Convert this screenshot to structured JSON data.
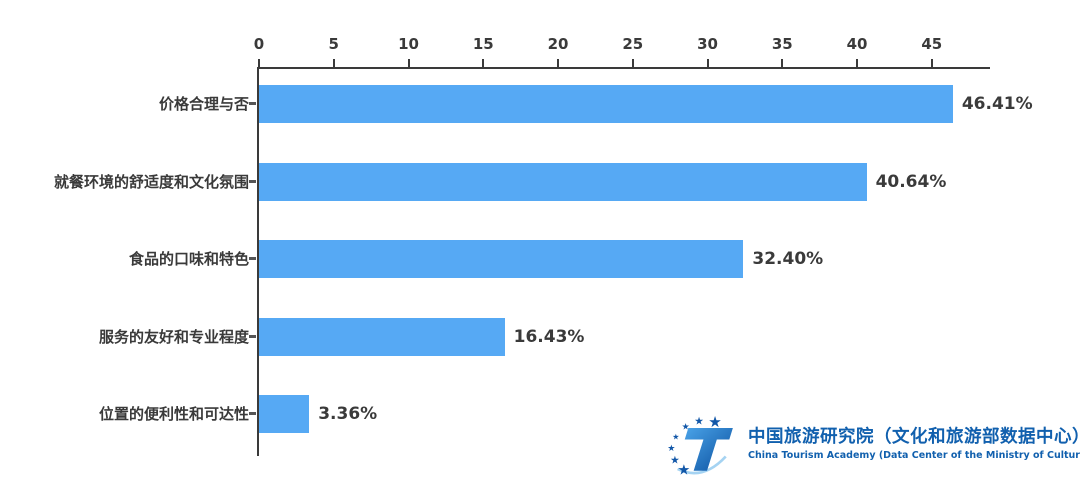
{
  "chart_data": {
    "type": "bar",
    "orientation": "horizontal",
    "title": "",
    "xlabel": "",
    "ylabel": "",
    "categories": [
      "价格合理与否",
      "就餐环境的舒适度和文化氛围",
      "食品的口味和特色",
      "服务的友好和专业程度",
      "位置的便利性和可达性"
    ],
    "values": [
      46.41,
      40.64,
      32.4,
      16.43,
      3.36
    ],
    "value_labels": [
      "46.41%",
      "40.64%",
      "32.40%",
      "16.43%",
      "3.36%"
    ],
    "x_ticks": [
      0,
      5,
      10,
      15,
      20,
      25,
      30,
      35,
      40,
      45
    ],
    "xlim": [
      0,
      49
    ],
    "grid": false,
    "legend": "none",
    "bar_color": "#56a9f4",
    "axis_color": "#3a3a3a",
    "label_color": "#3a3a3a"
  },
  "branding": {
    "logo_icon": "china-tourism-academy-logo",
    "name_zh": "中国旅游研究院（文化和旅游部数据中心）",
    "name_en": "China Tourism Academy (Data Center of the Ministry of Culture and Tourism)",
    "brand_color": "#1160ae"
  }
}
